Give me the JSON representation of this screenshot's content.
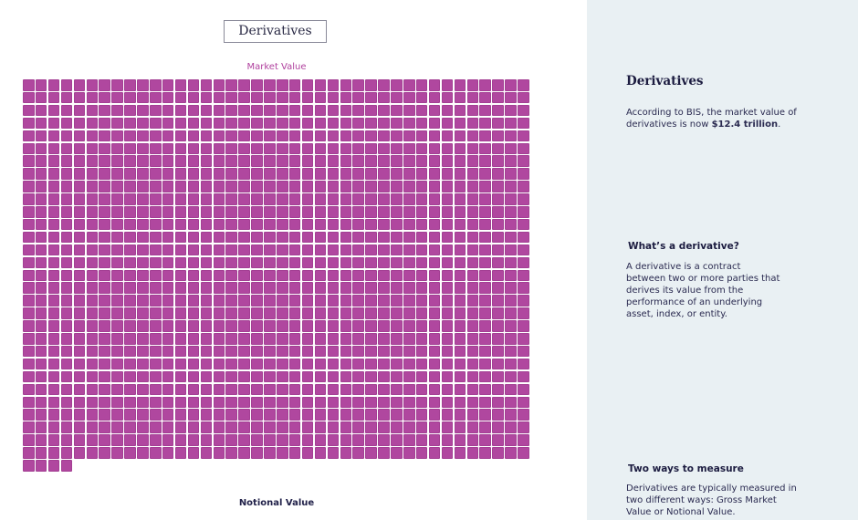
{
  "header": {
    "title_button": "Derivatives"
  },
  "chart": {
    "market_value_label": "Market Value",
    "notional_value_label": "Notional Value",
    "square_color": "#b0479f",
    "square_count": 1204
  },
  "sidebar": {
    "title": "Derivatives",
    "intro_text": "According to BIS, the market value of derivatives is now ",
    "intro_highlight": "$12.4 trillion",
    "intro_end": ".",
    "section1_title": "What’s a derivative?",
    "section1_text": "A derivative is a contract between two or more parties that derives its value from the performance of an underlying asset, index, or entity.",
    "section2_title": "Two ways to measure",
    "section2_text": "Derivatives are typically measured in two different ways: Gross Market Value or Notional Value."
  },
  "colors": {
    "accent": "#b0479f",
    "panel_bg": "#e9f0f3",
    "text_dark": "#1c1c40"
  }
}
